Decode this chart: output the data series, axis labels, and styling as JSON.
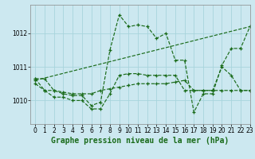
{
  "title": "Graphe pression niveau de la mer (hPa)",
  "background_color": "#cce8f0",
  "line_color": "#1a6b1a",
  "xlim": [
    -0.5,
    23
  ],
  "ylim": [
    1009.3,
    1012.85
  ],
  "yticks": [
    1010,
    1011,
    1012
  ],
  "xticks": [
    0,
    1,
    2,
    3,
    4,
    5,
    6,
    7,
    8,
    9,
    10,
    11,
    12,
    13,
    14,
    15,
    16,
    17,
    18,
    19,
    20,
    21,
    22,
    23
  ],
  "series": [
    {
      "x": [
        0,
        1,
        2,
        3,
        4,
        5,
        6,
        7,
        8,
        9,
        10,
        11,
        12,
        13,
        14,
        15,
        16,
        17,
        18,
        19,
        20,
        21,
        22,
        23
      ],
      "y": [
        1010.65,
        1010.65,
        1010.3,
        1010.2,
        1010.15,
        1010.15,
        1009.85,
        1009.95,
        1011.5,
        1012.55,
        1012.2,
        1012.25,
        1012.2,
        1011.85,
        1012.0,
        1011.2,
        1011.2,
        1009.65,
        1010.2,
        1010.2,
        1011.05,
        1011.55,
        1011.55,
        1012.2
      ]
    },
    {
      "x": [
        0,
        1,
        2,
        3,
        4,
        5,
        6,
        7,
        8,
        9,
        10,
        11,
        12,
        13,
        14,
        15,
        16,
        17,
        18,
        19,
        20,
        21,
        22,
        23
      ],
      "y": [
        1010.5,
        1010.3,
        1010.3,
        1010.25,
        1010.2,
        1010.2,
        1010.2,
        1010.3,
        1010.35,
        1010.4,
        1010.45,
        1010.5,
        1010.5,
        1010.5,
        1010.5,
        1010.55,
        1010.6,
        1010.3,
        1010.3,
        1010.3,
        1011.0,
        1010.75,
        1010.3,
        1010.3
      ]
    },
    {
      "x": [
        0,
        23
      ],
      "y": [
        1010.6,
        1012.2
      ]
    },
    {
      "x": [
        0,
        1,
        2,
        3,
        4,
        5,
        6,
        7,
        8,
        9,
        10,
        11,
        12,
        13,
        14,
        15,
        16,
        17,
        18,
        19,
        20,
        21,
        22,
        23
      ],
      "y": [
        1010.65,
        1010.3,
        1010.1,
        1010.1,
        1010.0,
        1010.0,
        1009.75,
        1009.75,
        1010.2,
        1010.75,
        1010.8,
        1010.8,
        1010.75,
        1010.75,
        1010.75,
        1010.75,
        1010.3,
        1010.3,
        1010.3,
        1010.3,
        1010.3,
        1010.3,
        1010.3,
        1010.3
      ]
    }
  ],
  "grid_color": "#a8d4dc",
  "tick_fontsize": 5.5,
  "xlabel_fontsize": 7
}
